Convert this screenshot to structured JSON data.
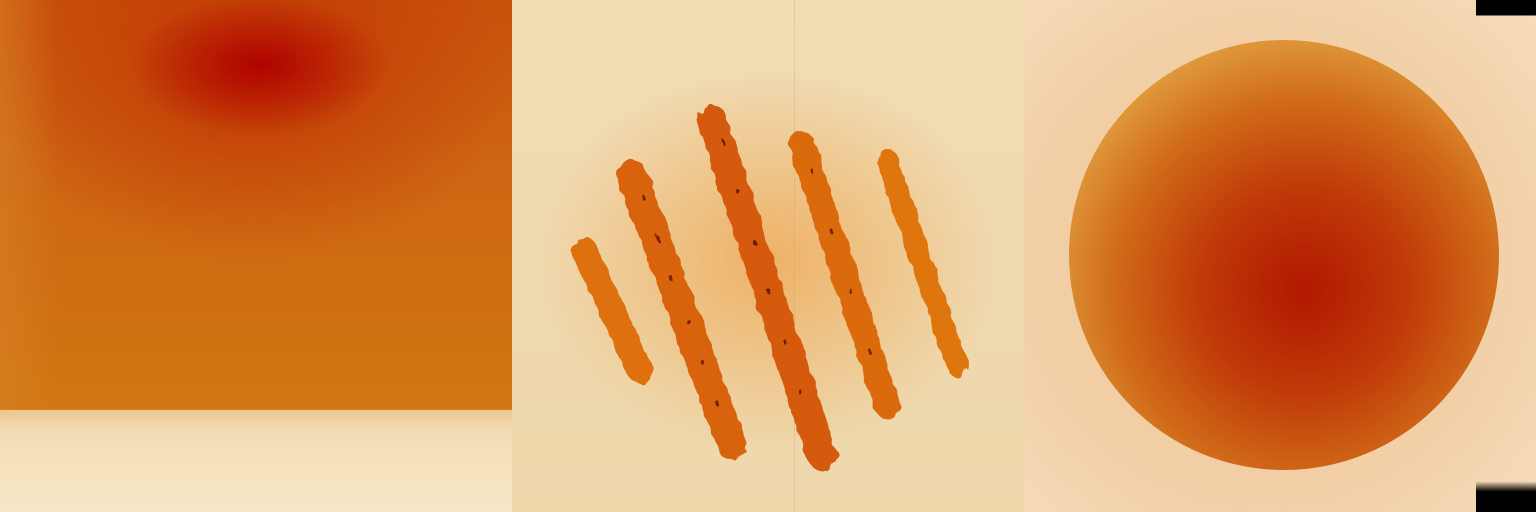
{
  "panels": [
    {
      "name": "panel-smear",
      "colors": {
        "hot": "#af0000",
        "mid": "#cd6412",
        "base": "#f6e4c0"
      }
    },
    {
      "name": "panel-toast-marks",
      "colors": {
        "mark": "#d9650a",
        "dark": "#5a1a00",
        "bread": "#f1dcb4"
      }
    },
    {
      "name": "panel-round-blob",
      "colors": {
        "core": "#b01800",
        "ring": "#e09a3c",
        "bg": "#f2cfa6"
      }
    }
  ]
}
